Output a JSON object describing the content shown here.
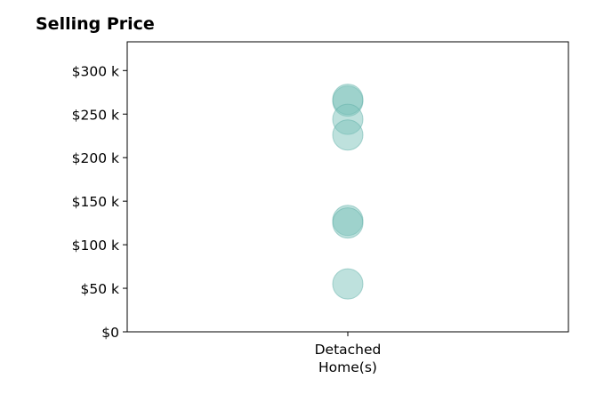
{
  "chart_data": {
    "type": "scatter",
    "title": "Selling Price",
    "xlabel": "",
    "ylabel": "",
    "categories": [
      [
        "Detached",
        "Home(s)"
      ]
    ],
    "series": [
      {
        "category_index": 0,
        "values": [
          265000,
          267000,
          244000,
          226000,
          128000,
          125000,
          55000
        ]
      }
    ],
    "ylim": [
      0,
      333000
    ],
    "yticks": [
      0,
      50000,
      100000,
      150000,
      200000,
      250000,
      300000
    ],
    "ytick_labels": [
      "$0",
      "$50 k",
      "$100 k",
      "$150 k",
      "$200 k",
      "$250 k",
      "$300 k"
    ],
    "marker_color": "#7ec4bc",
    "marker_edge_color": "#5fb0a7",
    "grid": false,
    "legend": "none"
  }
}
